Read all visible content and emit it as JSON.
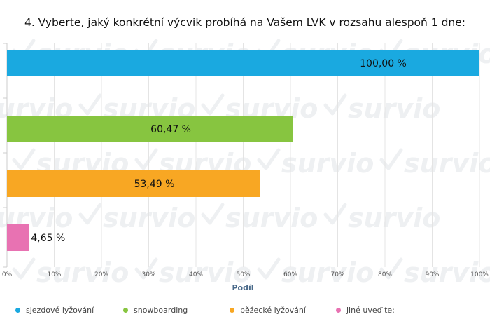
{
  "chart_data": {
    "type": "bar",
    "orientation": "horizontal",
    "title": "4. Vyberte, jaký konkrétní výcvik probíhá na Vašem LVK v rozsahu alespoň 1 dne:",
    "xlabel": "Podíl",
    "ylabel": "",
    "xlim": [
      0,
      100
    ],
    "xticks": [
      "0%",
      "10%",
      "20%",
      "30%",
      "40%",
      "50%",
      "60%",
      "70%",
      "80%",
      "90%",
      "100%"
    ],
    "categories": [
      "sjezdové lyžování",
      "snowboarding",
      "běžecké lyžování",
      "jiné uveď te:"
    ],
    "values": [
      100.0,
      60.47,
      53.49,
      4.65
    ],
    "value_labels": [
      "100,00 %",
      "60,47 %",
      "53,49 %",
      "4,65 %"
    ],
    "colors": [
      "#1aa9e0",
      "#87c540",
      "#f8a723",
      "#e872b2"
    ],
    "legend_position": "bottom",
    "grid": true
  },
  "watermark": "survio"
}
